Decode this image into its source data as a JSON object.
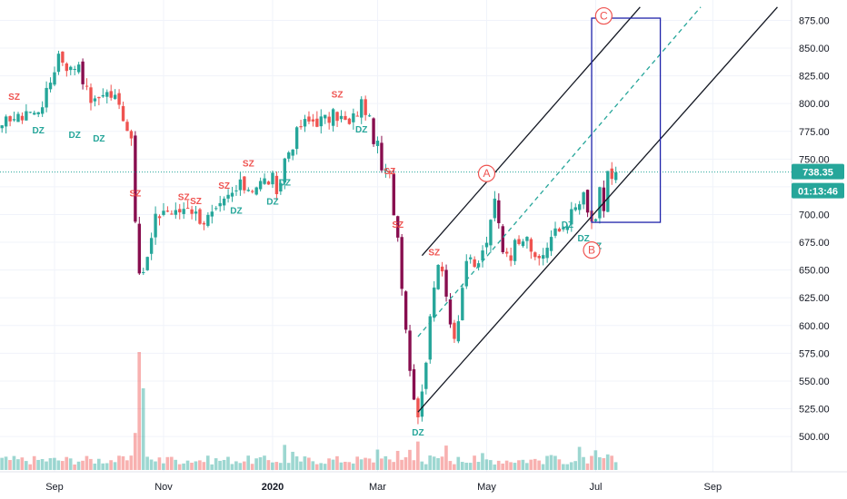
{
  "chart_data": {
    "type": "candlestick",
    "price_axis": {
      "range": [
        478,
        886
      ],
      "ticks": [
        "875.00",
        "850.00",
        "825.00",
        "800.00",
        "775.00",
        "750.00",
        "725.00",
        "700.00",
        "675.00",
        "650.00",
        "625.00",
        "600.00",
        "575.00",
        "550.00",
        "525.00",
        "500.00"
      ],
      "tick_values": [
        875,
        850,
        825,
        800,
        775,
        750,
        725,
        700,
        675,
        650,
        625,
        600,
        575,
        550,
        525,
        500
      ]
    },
    "time_axis": {
      "labels": [
        "Sep",
        "Nov",
        "2020",
        "Mar",
        "May",
        "Jul",
        "Sep"
      ],
      "label_bars": [
        13,
        40,
        67,
        93,
        120,
        147,
        176
      ],
      "total_bars": 196
    },
    "last_price": {
      "value": 738.35,
      "label": "738.35",
      "timer": "01:13:46"
    },
    "colors": {
      "up": "#26a69a",
      "down": "#ef5350",
      "dark_down": "#880e4f",
      "channel": "#131722",
      "dashed": "#26a69a",
      "box": "#1e22aa",
      "label": "#ef5350"
    },
    "anchors": [
      {
        "bar": 0,
        "price": 775
      },
      {
        "bar": 2,
        "price": 790
      },
      {
        "bar": 4,
        "price": 785
      },
      {
        "bar": 6,
        "price": 795
      },
      {
        "bar": 8,
        "price": 790
      },
      {
        "bar": 11,
        "price": 808
      },
      {
        "bar": 14,
        "price": 845
      },
      {
        "bar": 17,
        "price": 830
      },
      {
        "bar": 19,
        "price": 838
      },
      {
        "bar": 21,
        "price": 810
      },
      {
        "bar": 23,
        "price": 800
      },
      {
        "bar": 25,
        "price": 812
      },
      {
        "bar": 28,
        "price": 805
      },
      {
        "bar": 30,
        "price": 790
      },
      {
        "bar": 32,
        "price": 770
      },
      {
        "bar": 33,
        "price": 700
      },
      {
        "bar": 34,
        "price": 640
      },
      {
        "bar": 35,
        "price": 650
      },
      {
        "bar": 36,
        "price": 660
      },
      {
        "bar": 38,
        "price": 695
      },
      {
        "bar": 40,
        "price": 705
      },
      {
        "bar": 43,
        "price": 700
      },
      {
        "bar": 46,
        "price": 710
      },
      {
        "bar": 48,
        "price": 700
      },
      {
        "bar": 50,
        "price": 695
      },
      {
        "bar": 53,
        "price": 700
      },
      {
        "bar": 56,
        "price": 715
      },
      {
        "bar": 59,
        "price": 725
      },
      {
        "bar": 62,
        "price": 725
      },
      {
        "bar": 65,
        "price": 730
      },
      {
        "bar": 67,
        "price": 732
      },
      {
        "bar": 68,
        "price": 712
      },
      {
        "bar": 70,
        "price": 750
      },
      {
        "bar": 72,
        "price": 765
      },
      {
        "bar": 74,
        "price": 780
      },
      {
        "bar": 77,
        "price": 785
      },
      {
        "bar": 80,
        "price": 785
      },
      {
        "bar": 83,
        "price": 790
      },
      {
        "bar": 86,
        "price": 780
      },
      {
        "bar": 89,
        "price": 800
      },
      {
        "bar": 90,
        "price": 795
      },
      {
        "bar": 92,
        "price": 770
      },
      {
        "bar": 93,
        "price": 760
      },
      {
        "bar": 94,
        "price": 740
      },
      {
        "bar": 96,
        "price": 735
      },
      {
        "bar": 97,
        "price": 705
      },
      {
        "bar": 98,
        "price": 680
      },
      {
        "bar": 99,
        "price": 640
      },
      {
        "bar": 101,
        "price": 560
      },
      {
        "bar": 102,
        "price": 540
      },
      {
        "bar": 103,
        "price": 520
      },
      {
        "bar": 104,
        "price": 545
      },
      {
        "bar": 105,
        "price": 570
      },
      {
        "bar": 107,
        "price": 640
      },
      {
        "bar": 108,
        "price": 660
      },
      {
        "bar": 110,
        "price": 625
      },
      {
        "bar": 112,
        "price": 590
      },
      {
        "bar": 113,
        "price": 610
      },
      {
        "bar": 115,
        "price": 660
      },
      {
        "bar": 117,
        "price": 650
      },
      {
        "bar": 119,
        "price": 665
      },
      {
        "bar": 121,
        "price": 690
      },
      {
        "bar": 122,
        "price": 712
      },
      {
        "bar": 124,
        "price": 670
      },
      {
        "bar": 126,
        "price": 665
      },
      {
        "bar": 128,
        "price": 680
      },
      {
        "bar": 130,
        "price": 685
      },
      {
        "bar": 132,
        "price": 655
      },
      {
        "bar": 134,
        "price": 665
      },
      {
        "bar": 136,
        "price": 680
      },
      {
        "bar": 138,
        "price": 685
      },
      {
        "bar": 140,
        "price": 695
      },
      {
        "bar": 142,
        "price": 705
      },
      {
        "bar": 144,
        "price": 715
      },
      {
        "bar": 145,
        "price": 700
      },
      {
        "bar": 147,
        "price": 690
      },
      {
        "bar": 148,
        "price": 720
      },
      {
        "bar": 149,
        "price": 705
      },
      {
        "bar": 150,
        "price": 740
      },
      {
        "bar": 151,
        "price": 730
      },
      {
        "bar": 152,
        "price": 738
      }
    ],
    "markers": [
      {
        "type": "SZ",
        "bar": 3,
        "price": 800,
        "pos": "above"
      },
      {
        "type": "DZ",
        "bar": 9,
        "price": 782,
        "pos": "below"
      },
      {
        "type": "DZ",
        "bar": 18,
        "price": 778,
        "pos": "below"
      },
      {
        "type": "DZ",
        "bar": 24,
        "price": 775,
        "pos": "below"
      },
      {
        "type": "SZ",
        "bar": 33,
        "price": 713,
        "pos": "above"
      },
      {
        "type": "SZ",
        "bar": 45,
        "price": 710,
        "pos": "above"
      },
      {
        "type": "SZ",
        "bar": 48,
        "price": 706,
        "pos": "above"
      },
      {
        "type": "SZ",
        "bar": 55,
        "price": 720,
        "pos": "above"
      },
      {
        "type": "DZ",
        "bar": 58,
        "price": 710,
        "pos": "below"
      },
      {
        "type": "SZ",
        "bar": 61,
        "price": 740,
        "pos": "above"
      },
      {
        "type": "DZ",
        "bar": 67,
        "price": 718,
        "pos": "below"
      },
      {
        "type": "DZ",
        "bar": 70,
        "price": 735,
        "pos": "below"
      },
      {
        "type": "SZ",
        "bar": 83,
        "price": 802,
        "pos": "above"
      },
      {
        "type": "DZ",
        "bar": 89,
        "price": 783,
        "pos": "below"
      },
      {
        "type": "SZ",
        "bar": 96,
        "price": 733,
        "pos": "above"
      },
      {
        "type": "SZ",
        "bar": 98,
        "price": 685,
        "pos": "above"
      },
      {
        "type": "DZ",
        "bar": 103,
        "price": 510,
        "pos": "below"
      },
      {
        "type": "SZ",
        "bar": 107,
        "price": 660,
        "pos": "above"
      },
      {
        "type": "DZ",
        "bar": 140,
        "price": 697,
        "pos": "below"
      },
      {
        "type": "DZ",
        "bar": 144,
        "price": 685,
        "pos": "below"
      },
      {
        "type": "DZ",
        "bar": 147,
        "price": 678,
        "pos": "below"
      }
    ],
    "channel_lines": [
      {
        "name": "upper-channel-line",
        "from": {
          "bar": 104,
          "price": 663
        },
        "to": {
          "bar": 158,
          "price": 887
        },
        "style": "solid"
      },
      {
        "name": "lower-channel-line",
        "from": {
          "bar": 103,
          "price": 522
        },
        "to": {
          "bar": 192,
          "price": 887
        },
        "style": "solid"
      },
      {
        "name": "mid-dashed-line",
        "from": {
          "bar": 103,
          "price": 590
        },
        "to": {
          "bar": 173,
          "price": 887
        },
        "style": "dashed"
      }
    ],
    "target_box": {
      "bar_from": 146,
      "bar_to": 163,
      "price_top": 877,
      "price_bottom": 693
    },
    "wave_labels": [
      {
        "text": "A",
        "bar": 120,
        "price": 737
      },
      {
        "text": "B",
        "bar": 146,
        "price": 668
      },
      {
        "text": "C",
        "bar": 149,
        "price": 879
      }
    ]
  }
}
